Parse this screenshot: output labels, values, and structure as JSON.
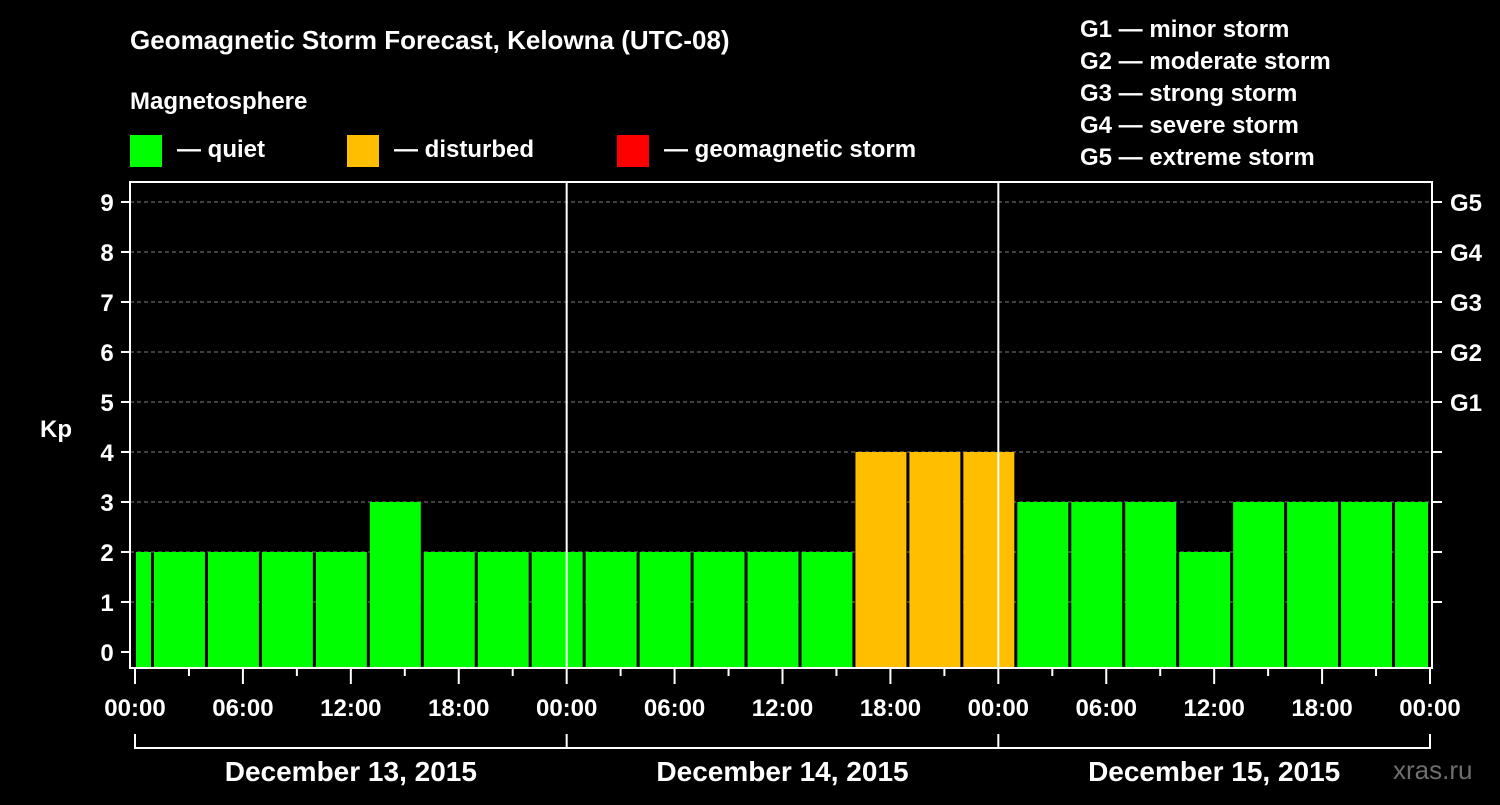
{
  "chart_data": {
    "type": "bar",
    "title": "Geomagnetic Storm Forecast, Kelowna (UTC-08)",
    "subtitle": "Magnetosphere",
    "ylabel": "Kp",
    "ylim": [
      0,
      9
    ],
    "y_ticks": [
      "0",
      "1",
      "2",
      "3",
      "4",
      "5",
      "6",
      "7",
      "8",
      "9"
    ],
    "right_axis_labels": [
      {
        "kp": 5,
        "label": "G1"
      },
      {
        "kp": 6,
        "label": "G2"
      },
      {
        "kp": 7,
        "label": "G3"
      },
      {
        "kp": 8,
        "label": "G4"
      },
      {
        "kp": 9,
        "label": "G5"
      }
    ],
    "storm_scale": [
      {
        "key": "G1",
        "text": "G1 — minor storm"
      },
      {
        "key": "G2",
        "text": "G2 — moderate storm"
      },
      {
        "key": "G3",
        "text": "G3 — strong storm"
      },
      {
        "key": "G4",
        "text": "G4 — severe storm"
      },
      {
        "key": "G5",
        "text": "G5 — extreme storm"
      }
    ],
    "legend": [
      {
        "key": "quiet",
        "label": "— quiet",
        "color": "#00ff00"
      },
      {
        "key": "disturbed",
        "label": "— disturbed",
        "color": "#ffbf00"
      },
      {
        "key": "storm",
        "label": "— geomagnetic storm",
        "color": "#ff0000"
      }
    ],
    "x_ticks": [
      "00:00",
      "06:00",
      "12:00",
      "18:00",
      "00:00",
      "06:00",
      "12:00",
      "18:00",
      "00:00",
      "06:00",
      "12:00",
      "18:00",
      "00:00"
    ],
    "days": [
      "December 13, 2015",
      "December 14, 2015",
      "December 15, 2015"
    ],
    "bars": [
      {
        "start_hour": -2,
        "kp": 2,
        "level": "quiet"
      },
      {
        "start_hour": 1,
        "kp": 2,
        "level": "quiet"
      },
      {
        "start_hour": 4,
        "kp": 2,
        "level": "quiet"
      },
      {
        "start_hour": 7,
        "kp": 2,
        "level": "quiet"
      },
      {
        "start_hour": 10,
        "kp": 2,
        "level": "quiet"
      },
      {
        "start_hour": 13,
        "kp": 3,
        "level": "quiet"
      },
      {
        "start_hour": 16,
        "kp": 2,
        "level": "quiet"
      },
      {
        "start_hour": 19,
        "kp": 2,
        "level": "quiet"
      },
      {
        "start_hour": 22,
        "kp": 2,
        "level": "quiet"
      },
      {
        "start_hour": 25,
        "kp": 2,
        "level": "quiet"
      },
      {
        "start_hour": 28,
        "kp": 2,
        "level": "quiet"
      },
      {
        "start_hour": 31,
        "kp": 2,
        "level": "quiet"
      },
      {
        "start_hour": 34,
        "kp": 2,
        "level": "quiet"
      },
      {
        "start_hour": 37,
        "kp": 2,
        "level": "quiet"
      },
      {
        "start_hour": 40,
        "kp": 4,
        "level": "disturbed"
      },
      {
        "start_hour": 43,
        "kp": 4,
        "level": "disturbed"
      },
      {
        "start_hour": 46,
        "kp": 4,
        "level": "disturbed"
      },
      {
        "start_hour": 49,
        "kp": 3,
        "level": "quiet"
      },
      {
        "start_hour": 52,
        "kp": 3,
        "level": "quiet"
      },
      {
        "start_hour": 55,
        "kp": 3,
        "level": "quiet"
      },
      {
        "start_hour": 58,
        "kp": 2,
        "level": "quiet"
      },
      {
        "start_hour": 61,
        "kp": 3,
        "level": "quiet"
      },
      {
        "start_hour": 64,
        "kp": 3,
        "level": "quiet"
      },
      {
        "start_hour": 67,
        "kp": 3,
        "level": "quiet"
      },
      {
        "start_hour": 70,
        "kp": 3,
        "level": "quiet"
      }
    ],
    "hours_total": 72,
    "watermark": "xras.ru"
  }
}
